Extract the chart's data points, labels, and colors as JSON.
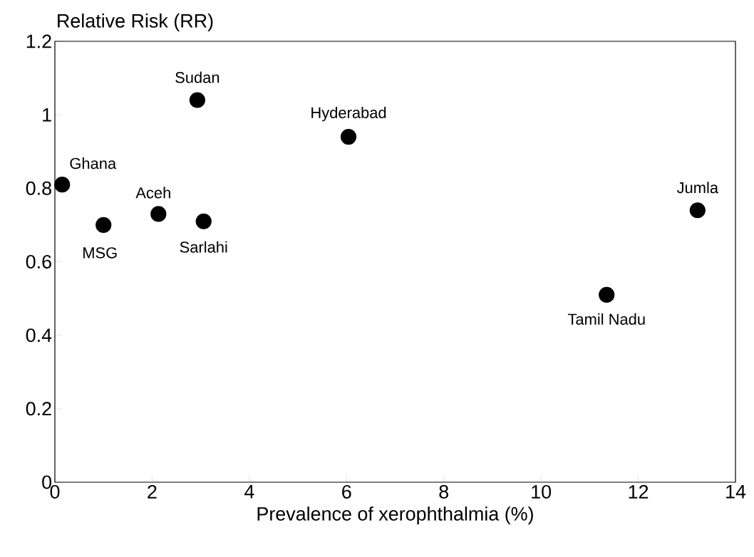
{
  "chart_data": {
    "type": "scatter",
    "xlabel": "Prevalence of xerophthalmia (%)",
    "ylabel": "Relative Risk (RR)",
    "series": [
      {
        "color": "#000000",
        "x": [
          0.15,
          1.0,
          2.13,
          2.93,
          3.06,
          6.04,
          11.35,
          13.22
        ],
        "values": [
          0.81,
          0.7,
          0.73,
          1.04,
          0.71,
          0.94,
          0.51,
          0.74
        ]
      }
    ],
    "marker": "circle",
    "xlim": [
      0,
      14
    ],
    "xticks": [
      0,
      2,
      4,
      6,
      8,
      10,
      12,
      14
    ],
    "ylim": [
      0,
      1.2
    ],
    "yticks": [
      0,
      0.2,
      0.4,
      0.6,
      0.8,
      1,
      1.2
    ],
    "annotations": [
      {
        "text": "Ghana",
        "x": 0.15,
        "y": 0.81
      },
      {
        "text": "MSG",
        "x": 1.0,
        "y": 0.7
      },
      {
        "text": "Aceh",
        "x": 2.13,
        "y": 0.73
      },
      {
        "text": "Sudan",
        "x": 2.93,
        "y": 1.04
      },
      {
        "text": "Sarlahi",
        "x": 3.06,
        "y": 0.71
      },
      {
        "text": "Hyderabad",
        "x": 6.04,
        "y": 0.94
      },
      {
        "text": "Tamil Nadu",
        "x": 11.35,
        "y": 0.51
      },
      {
        "text": "Jumla",
        "x": 13.22,
        "y": 0.74
      }
    ]
  }
}
